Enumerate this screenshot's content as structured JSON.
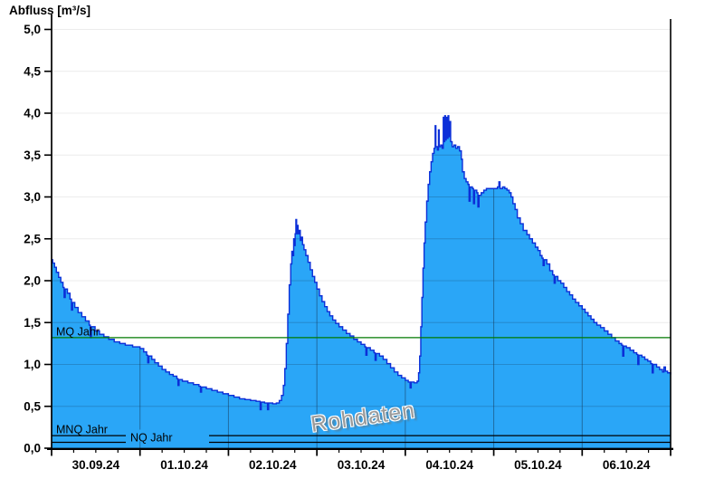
{
  "chart_data": {
    "type": "area",
    "title": "Abfluss [m³/s]",
    "watermark": "Rohdaten",
    "ylabel": "Abfluss [m³/s]",
    "ylim": [
      0,
      5
    ],
    "ytick_step": 0.5,
    "ytick_labels": [
      "0,0",
      "0,5",
      "1,0",
      "1,5",
      "2,0",
      "2,5",
      "3,0",
      "3,5",
      "4,0",
      "4,5",
      "5,0"
    ],
    "x_day_labels": [
      "30.09.24",
      "01.10.24",
      "02.10.24",
      "03.10.24",
      "04.10.24",
      "05.10.24",
      "06.10.24"
    ],
    "x_hours_total": 168,
    "x_minor_tick_hours": 6,
    "grid": true,
    "legend_position": "none",
    "reference_lines": [
      {
        "label": "MQ Jahr",
        "value": 1.32,
        "color": "#007a00"
      },
      {
        "label": "MNQ Jahr",
        "value": 0.15,
        "color": "#000000"
      },
      {
        "label": "NQ Jahr",
        "value": 0.07,
        "color": "#000000"
      }
    ],
    "series": [
      {
        "name": "Abfluss Rohdaten",
        "unit": "m³/s",
        "fill_color": "#2aa6f7",
        "line_color": "#0b2fd8",
        "points": [
          [
            0,
            2.25
          ],
          [
            0.3,
            2.21
          ],
          [
            0.8,
            2.16
          ],
          [
            1.3,
            2.1
          ],
          [
            1.9,
            2.04
          ],
          [
            2.5,
            1.98
          ],
          [
            3.1,
            1.92
          ],
          [
            3.4,
            1.8
          ],
          [
            3.7,
            1.9
          ],
          [
            4.3,
            1.85
          ],
          [
            5,
            1.78
          ],
          [
            5.4,
            1.65
          ],
          [
            5.7,
            1.74
          ],
          [
            6.3,
            1.68
          ],
          [
            7.2,
            1.62
          ],
          [
            8.2,
            1.57
          ],
          [
            9.2,
            1.52
          ],
          [
            10.2,
            1.47
          ],
          [
            10.5,
            1.32
          ],
          [
            10.8,
            1.45
          ],
          [
            11.8,
            1.4
          ],
          [
            13,
            1.36
          ],
          [
            14.2,
            1.33
          ],
          [
            15.5,
            1.3
          ],
          [
            17,
            1.27
          ],
          [
            18.5,
            1.25
          ],
          [
            20,
            1.23
          ],
          [
            22,
            1.21
          ],
          [
            24,
            1.19
          ],
          [
            25,
            1.15
          ],
          [
            25.8,
            1.11
          ],
          [
            26.1,
            1.02
          ],
          [
            26.4,
            1.1
          ],
          [
            27.2,
            1.06
          ],
          [
            28,
            1.02
          ],
          [
            29,
            0.98
          ],
          [
            30,
            0.94
          ],
          [
            31,
            0.91
          ],
          [
            32,
            0.88
          ],
          [
            33,
            0.86
          ],
          [
            34,
            0.83
          ],
          [
            34.3,
            0.75
          ],
          [
            34.6,
            0.82
          ],
          [
            35.5,
            0.8
          ],
          [
            37,
            0.78
          ],
          [
            38.5,
            0.76
          ],
          [
            40,
            0.74
          ],
          [
            40.4,
            0.67
          ],
          [
            40.7,
            0.73
          ],
          [
            42,
            0.71
          ],
          [
            43.5,
            0.69
          ],
          [
            45,
            0.67
          ],
          [
            46.5,
            0.65
          ],
          [
            48,
            0.63
          ],
          [
            49.5,
            0.61
          ],
          [
            51,
            0.59
          ],
          [
            52.5,
            0.58
          ],
          [
            54,
            0.57
          ],
          [
            55.5,
            0.56
          ],
          [
            56.6,
            0.46
          ],
          [
            56.9,
            0.55
          ],
          [
            57.8,
            0.54
          ],
          [
            58.6,
            0.46
          ],
          [
            58.9,
            0.54
          ],
          [
            60,
            0.53
          ],
          [
            61,
            0.54
          ],
          [
            61.8,
            0.57
          ],
          [
            62.4,
            0.63
          ],
          [
            62.9,
            0.75
          ],
          [
            63.3,
            0.95
          ],
          [
            63.7,
            1.25
          ],
          [
            64.1,
            1.6
          ],
          [
            64.5,
            1.95
          ],
          [
            64.9,
            2.2
          ],
          [
            65.2,
            2.35
          ],
          [
            65.5,
            2.3
          ],
          [
            65.7,
            2.5
          ],
          [
            65.9,
            2.42
          ],
          [
            66.1,
            2.56
          ],
          [
            66.3,
            2.73
          ],
          [
            66.5,
            2.56
          ],
          [
            66.7,
            2.66
          ],
          [
            66.9,
            2.56
          ],
          [
            67.2,
            2.6
          ],
          [
            67.5,
            2.48
          ],
          [
            67.8,
            2.52
          ],
          [
            68.1,
            2.43
          ],
          [
            68.5,
            2.37
          ],
          [
            69,
            2.3
          ],
          [
            69.6,
            2.22
          ],
          [
            70.2,
            2.13
          ],
          [
            70.8,
            2.05
          ],
          [
            71.4,
            1.98
          ],
          [
            72,
            1.9
          ],
          [
            72.7,
            1.82
          ],
          [
            73.4,
            1.75
          ],
          [
            74.1,
            1.69
          ],
          [
            74.8,
            1.63
          ],
          [
            75.5,
            1.58
          ],
          [
            76.3,
            1.53
          ],
          [
            77.1,
            1.49
          ],
          [
            78,
            1.45
          ],
          [
            79,
            1.41
          ],
          [
            80,
            1.37
          ],
          [
            81,
            1.34
          ],
          [
            82,
            1.3
          ],
          [
            83,
            1.27
          ],
          [
            84,
            1.24
          ],
          [
            85,
            1.21
          ],
          [
            85.3,
            1.11
          ],
          [
            85.6,
            1.2
          ],
          [
            86.5,
            1.17
          ],
          [
            87.5,
            1.14
          ],
          [
            87.8,
            1.05
          ],
          [
            88.1,
            1.13
          ],
          [
            89,
            1.1
          ],
          [
            90,
            1.06
          ],
          [
            91,
            1.01
          ],
          [
            92,
            0.96
          ],
          [
            93,
            0.91
          ],
          [
            94,
            0.87
          ],
          [
            95,
            0.84
          ],
          [
            96,
            0.81
          ],
          [
            96.8,
            0.79
          ],
          [
            97.3,
            0.72
          ],
          [
            97.6,
            0.79
          ],
          [
            98.4,
            0.78
          ],
          [
            99.2,
            0.8
          ],
          [
            99.6,
            0.9
          ],
          [
            99.9,
            1.1
          ],
          [
            100.2,
            1.45
          ],
          [
            100.5,
            1.8
          ],
          [
            100.8,
            2.15
          ],
          [
            101.1,
            2.45
          ],
          [
            101.4,
            2.7
          ],
          [
            101.8,
            2.95
          ],
          [
            102.2,
            3.15
          ],
          [
            102.6,
            3.3
          ],
          [
            103,
            3.42
          ],
          [
            103.4,
            3.52
          ],
          [
            103.8,
            3.58
          ],
          [
            104.1,
            3.85
          ],
          [
            104.3,
            3.6
          ],
          [
            104.7,
            3.56
          ],
          [
            105,
            3.8
          ],
          [
            105.2,
            3.6
          ],
          [
            105.6,
            3.62
          ],
          [
            106,
            3.58
          ],
          [
            106.3,
            3.95
          ],
          [
            106.5,
            3.66
          ],
          [
            106.7,
            3.97
          ],
          [
            106.9,
            3.68
          ],
          [
            107.1,
            3.95
          ],
          [
            107.3,
            3.7
          ],
          [
            107.6,
            3.97
          ],
          [
            107.8,
            3.72
          ],
          [
            108,
            3.9
          ],
          [
            108.3,
            3.66
          ],
          [
            108.7,
            3.6
          ],
          [
            109.2,
            3.62
          ],
          [
            109.7,
            3.58
          ],
          [
            110.2,
            3.6
          ],
          [
            110.7,
            3.55
          ],
          [
            111.2,
            3.45
          ],
          [
            111.5,
            3.3
          ],
          [
            112,
            3.22
          ],
          [
            112.5,
            3.18
          ],
          [
            113,
            3.15
          ],
          [
            113.3,
            2.95
          ],
          [
            113.6,
            3.12
          ],
          [
            114.2,
            3.1
          ],
          [
            114.5,
            2.92
          ],
          [
            114.8,
            3.08
          ],
          [
            115.4,
            3.05
          ],
          [
            115.7,
            2.88
          ],
          [
            116,
            3.02
          ],
          [
            116.6,
            3.05
          ],
          [
            117.3,
            3.08
          ],
          [
            118,
            3.1
          ],
          [
            119,
            3.1
          ],
          [
            120,
            3.1
          ],
          [
            121,
            3.12
          ],
          [
            121.4,
            3.18
          ],
          [
            121.7,
            3.1
          ],
          [
            122.4,
            3.12
          ],
          [
            123,
            3.1
          ],
          [
            123.6,
            3.08
          ],
          [
            124.2,
            3.05
          ],
          [
            124.7,
            3.0
          ],
          [
            125.2,
            2.92
          ],
          [
            125.8,
            2.85
          ],
          [
            126.4,
            2.75
          ],
          [
            127.2,
            2.68
          ],
          [
            128,
            2.6
          ],
          [
            129,
            2.55
          ],
          [
            129.7,
            2.5
          ],
          [
            130.5,
            2.45
          ],
          [
            131.3,
            2.4
          ],
          [
            132,
            2.36
          ],
          [
            132.6,
            2.3
          ],
          [
            133.1,
            2.27
          ],
          [
            133.4,
            2.18
          ],
          [
            133.7,
            2.25
          ],
          [
            134.4,
            2.2
          ],
          [
            135.2,
            2.12
          ],
          [
            136,
            2.07
          ],
          [
            136.4,
            1.97
          ],
          [
            136.7,
            2.05
          ],
          [
            137.4,
            2.0
          ],
          [
            138.2,
            1.97
          ],
          [
            139,
            1.92
          ],
          [
            139.8,
            1.87
          ],
          [
            140.6,
            1.83
          ],
          [
            141.4,
            1.78
          ],
          [
            142.2,
            1.74
          ],
          [
            143.1,
            1.7
          ],
          [
            144,
            1.66
          ],
          [
            144.8,
            1.62
          ],
          [
            145.6,
            1.58
          ],
          [
            146.4,
            1.54
          ],
          [
            147.2,
            1.5
          ],
          [
            148,
            1.47
          ],
          [
            149,
            1.44
          ],
          [
            150,
            1.4
          ],
          [
            151,
            1.36
          ],
          [
            152,
            1.32
          ],
          [
            153,
            1.28
          ],
          [
            154,
            1.25
          ],
          [
            154.7,
            1.23
          ],
          [
            155,
            1.1
          ],
          [
            155.3,
            1.22
          ],
          [
            156,
            1.2
          ],
          [
            157,
            1.17
          ],
          [
            158,
            1.14
          ],
          [
            158.8,
            1.12
          ],
          [
            159.1,
            1.0
          ],
          [
            159.4,
            1.11
          ],
          [
            160.2,
            1.09
          ],
          [
            161,
            1.06
          ],
          [
            161.8,
            1.04
          ],
          [
            162.6,
            1.01
          ],
          [
            163,
            0.9
          ],
          [
            163.3,
            1.0
          ],
          [
            164.2,
            0.97
          ],
          [
            165,
            0.94
          ],
          [
            165.8,
            0.91
          ],
          [
            166.2,
            0.97
          ],
          [
            166.6,
            0.92
          ],
          [
            167.2,
            0.9
          ],
          [
            168,
            0.88
          ]
        ]
      }
    ]
  }
}
